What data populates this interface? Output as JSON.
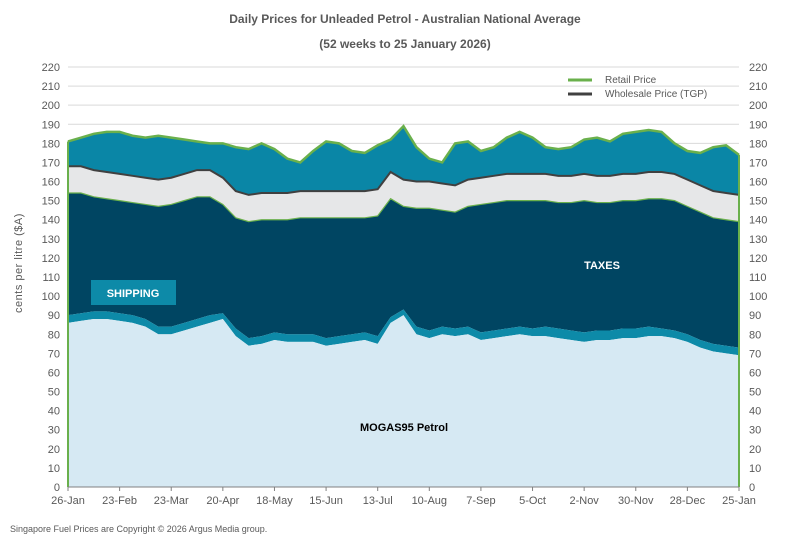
{
  "chart_data": {
    "type": "area",
    "title": "Daily  Prices for Unleaded  Petrol  - Australian  National  Average",
    "subtitle": "(52 weeks to 25 January  2026)",
    "ylabel": "cents per litre ($A)",
    "xlabel": "",
    "ylim": [
      0,
      220
    ],
    "y_ticks": [
      0,
      10,
      20,
      30,
      40,
      50,
      60,
      70,
      80,
      90,
      100,
      110,
      120,
      130,
      140,
      150,
      160,
      170,
      180,
      190,
      200,
      210,
      220
    ],
    "x_tick_labels": [
      "26-Jan",
      "23-Feb",
      "23-Mar",
      "20-Apr",
      "18-May",
      "15-Jun",
      "13-Jul",
      "10-Aug",
      "7-Sep",
      "5-Oct",
      "2-Nov",
      "30-Nov",
      "28-Dec",
      "25-Jan"
    ],
    "legend": [
      {
        "name": "Retail Price",
        "color": "#6ab04c"
      },
      {
        "name": "Wholesale Price (TGP)",
        "color": "#404040"
      }
    ],
    "area_labels": {
      "shipping": "SHIPPING",
      "taxes": "TAXES",
      "mogas": "MOGAS95 Petrol"
    },
    "x_weeks": [
      0,
      1,
      2,
      3,
      4,
      5,
      6,
      7,
      8,
      9,
      10,
      11,
      12,
      13,
      14,
      15,
      16,
      17,
      18,
      19,
      20,
      21,
      22,
      23,
      24,
      25,
      26,
      27,
      28,
      29,
      30,
      31,
      32,
      33,
      34,
      35,
      36,
      37,
      38,
      39,
      40,
      41,
      42,
      43,
      44,
      45,
      46,
      47,
      48,
      49,
      50,
      51,
      52
    ],
    "series": [
      {
        "name": "MOGAS95 Petrol",
        "color": "#d6e9f3",
        "values": [
          86,
          87,
          88,
          88,
          87,
          86,
          84,
          80,
          80,
          82,
          84,
          86,
          88,
          79,
          74,
          75,
          77,
          76,
          76,
          76,
          74,
          75,
          76,
          77,
          75,
          86,
          90,
          80,
          78,
          80,
          79,
          80,
          77,
          78,
          79,
          80,
          79,
          79,
          78,
          77,
          76,
          77,
          77,
          78,
          78,
          79,
          79,
          78,
          76,
          73,
          71,
          70,
          69
        ]
      },
      {
        "name": "Shipping",
        "color": "#0d8aa8",
        "values": [
          90,
          91,
          92,
          92,
          91,
          90,
          88,
          84,
          84,
          86,
          88,
          90,
          91,
          83,
          78,
          79,
          81,
          80,
          80,
          80,
          78,
          79,
          80,
          81,
          79,
          89,
          93,
          84,
          82,
          84,
          83,
          84,
          81,
          82,
          83,
          84,
          83,
          84,
          83,
          82,
          81,
          82,
          82,
          83,
          83,
          84,
          83,
          82,
          80,
          77,
          75,
          74,
          73
        ]
      },
      {
        "name": "Wholesale Price (TGP)",
        "color": "#404040",
        "values": [
          168,
          168,
          166,
          165,
          164,
          163,
          162,
          161,
          162,
          164,
          166,
          166,
          162,
          155,
          153,
          154,
          154,
          154,
          155,
          155,
          155,
          155,
          155,
          155,
          156,
          165,
          161,
          160,
          160,
          159,
          158,
          161,
          162,
          163,
          164,
          164,
          164,
          164,
          163,
          163,
          164,
          163,
          163,
          164,
          164,
          165,
          165,
          164,
          161,
          158,
          155,
          154,
          153
        ]
      },
      {
        "name": "Retail Price",
        "color": "#6ab04c",
        "values": [
          181,
          183,
          185,
          186,
          186,
          184,
          183,
          184,
          183,
          182,
          181,
          180,
          180,
          178,
          177,
          180,
          177,
          172,
          170,
          176,
          181,
          180,
          176,
          175,
          179,
          182,
          189,
          178,
          172,
          170,
          180,
          181,
          176,
          178,
          183,
          186,
          183,
          178,
          177,
          178,
          182,
          183,
          181,
          185,
          186,
          187,
          186,
          180,
          176,
          175,
          178,
          179,
          174
        ]
      }
    ]
  },
  "footer": {
    "copyright": "Singapore  Fuel Prices are  Copyright © 2026 Argus  Media  group."
  }
}
